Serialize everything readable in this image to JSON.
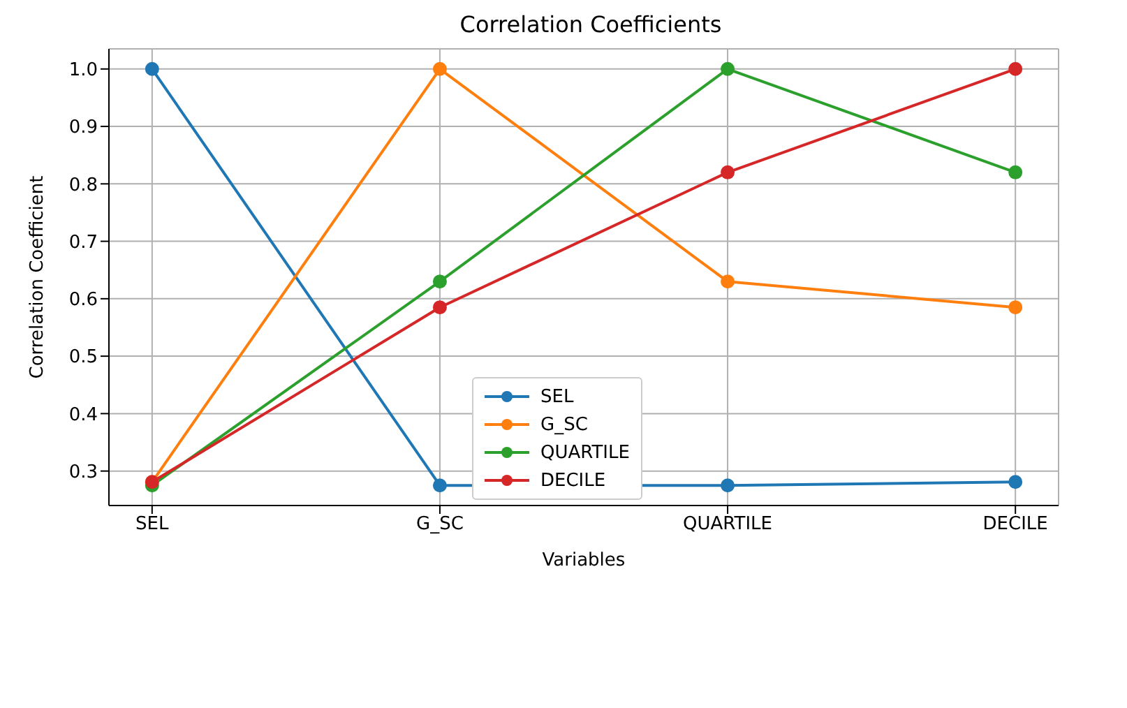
{
  "chart_data": {
    "type": "line",
    "title": "Correlation Coefficients",
    "xlabel": "Variables",
    "ylabel": "Correlation Coefficient",
    "categories": [
      "SEL",
      "G_SC",
      "QUARTILE",
      "DECILE"
    ],
    "series": [
      {
        "name": "SEL",
        "color": "#1f77b4",
        "values": [
          1.0,
          0.275,
          0.275,
          0.281
        ]
      },
      {
        "name": "G_SC",
        "color": "#ff7f0e",
        "values": [
          0.281,
          1.0,
          0.63,
          0.585
        ]
      },
      {
        "name": "QUARTILE",
        "color": "#2ca02c",
        "values": [
          0.275,
          0.63,
          1.0,
          0.82
        ]
      },
      {
        "name": "DECILE",
        "color": "#d62728",
        "values": [
          0.281,
          0.585,
          0.82,
          1.0
        ]
      }
    ],
    "ylim": [
      0.24,
      1.035
    ],
    "yticks": [
      0.3,
      0.4,
      0.5,
      0.6,
      0.7,
      0.8,
      0.9,
      {
        "value": 1.0,
        "label": "1.0"
      }
    ],
    "grid": true,
    "legend": "bottom",
    "marker": "circle",
    "line_style": "solid"
  }
}
